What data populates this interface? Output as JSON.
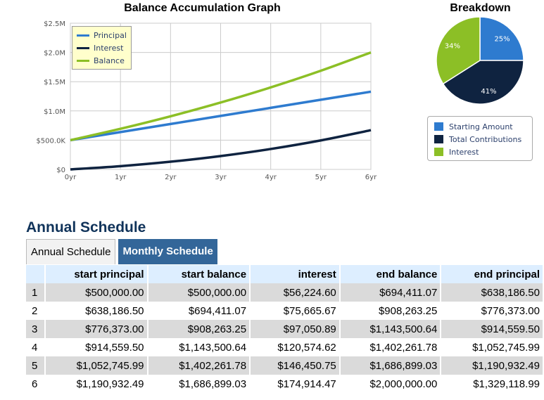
{
  "chart_data": [
    {
      "type": "line",
      "title": "Balance Accumulation Graph",
      "x": [
        "0yr",
        "1yr",
        "2yr",
        "3yr",
        "4yr",
        "5yr",
        "6yr"
      ],
      "y_ticks": [
        "$0",
        "$500.0K",
        "$1.0M",
        "$1.5M",
        "$2.0M",
        "$2.5M"
      ],
      "ylim": [
        0,
        2500000
      ],
      "grid": true,
      "legend_position": "top-left",
      "series": [
        {
          "name": "Principal",
          "color": "#2e7bcf",
          "values": [
            500000,
            638186.5,
            776373,
            914559.5,
            1052745.99,
            1190932.49,
            1329118.99
          ]
        },
        {
          "name": "Interest",
          "color": "#0f2340",
          "values": [
            0,
            56224.6,
            131890.27,
            228941.16,
            349515.78,
            495966.53,
            670881.0
          ]
        },
        {
          "name": "Balance",
          "color": "#8cbf26",
          "values": [
            500000,
            694411.07,
            908263.25,
            1143500.64,
            1402261.78,
            1686899.03,
            2000000
          ]
        }
      ]
    },
    {
      "type": "pie",
      "title": "Breakdown",
      "legend_position": "bottom",
      "slices": [
        {
          "name": "Starting Amount",
          "value": 25,
          "label": "25%",
          "color": "#2e7bcf"
        },
        {
          "name": "Total Contributions",
          "value": 41,
          "label": "41%",
          "color": "#0f2340"
        },
        {
          "name": "Interest",
          "value": 34,
          "label": "34%",
          "color": "#8cbf26"
        }
      ]
    }
  ],
  "schedule": {
    "heading": "Annual Schedule",
    "tabs": [
      "Annual Schedule",
      "Monthly Schedule"
    ],
    "columns": [
      "start principal",
      "start balance",
      "interest",
      "end balance",
      "end principal"
    ],
    "rows": [
      {
        "i": "1",
        "cells": [
          "$500,000.00",
          "$500,000.00",
          "$56,224.60",
          "$694,411.07",
          "$638,186.50"
        ]
      },
      {
        "i": "2",
        "cells": [
          "$638,186.50",
          "$694,411.07",
          "$75,665.67",
          "$908,263.25",
          "$776,373.00"
        ]
      },
      {
        "i": "3",
        "cells": [
          "$776,373.00",
          "$908,263.25",
          "$97,050.89",
          "$1,143,500.64",
          "$914,559.50"
        ]
      },
      {
        "i": "4",
        "cells": [
          "$914,559.50",
          "$1,143,500.64",
          "$120,574.62",
          "$1,402,261.78",
          "$1,052,745.99"
        ]
      },
      {
        "i": "5",
        "cells": [
          "$1,052,745.99",
          "$1,402,261.78",
          "$146,450.75",
          "$1,686,899.03",
          "$1,190,932.49"
        ]
      },
      {
        "i": "6",
        "cells": [
          "$1,190,932.49",
          "$1,686,899.03",
          "$174,914.47",
          "$2,000,000.00",
          "$1,329,118.99"
        ]
      }
    ]
  }
}
